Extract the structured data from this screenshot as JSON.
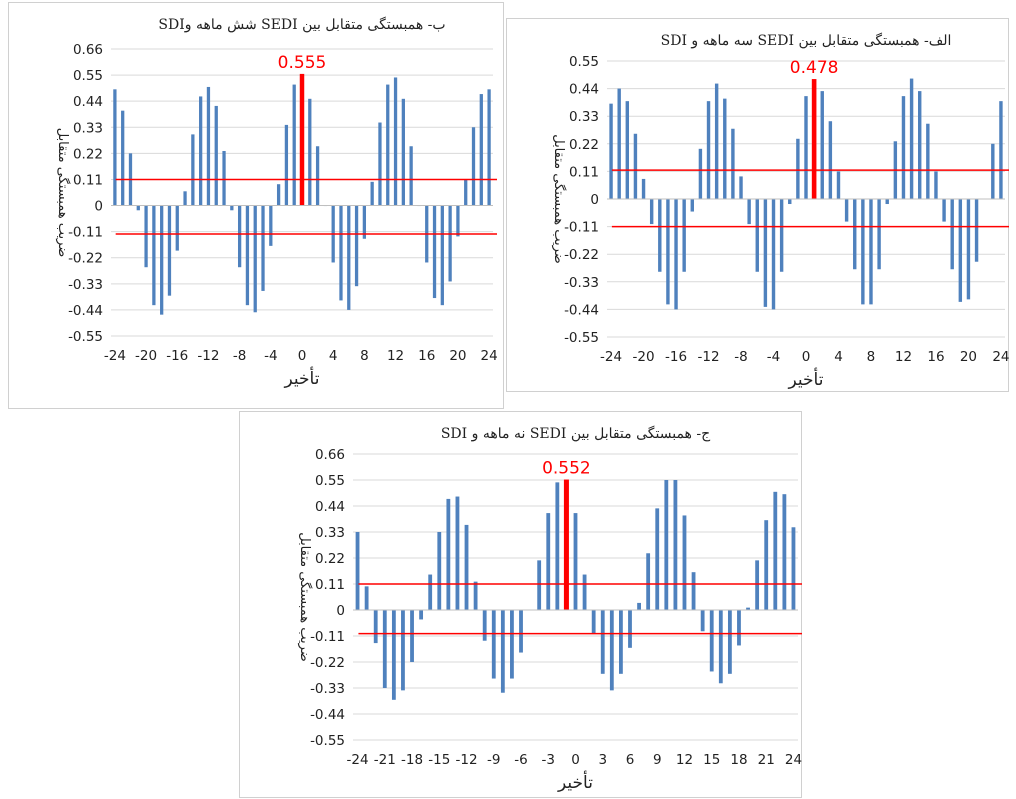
{
  "chart_data": [
    {
      "id": "b",
      "type": "bar",
      "title": "ب- همبستگی متقابل بین SEDI شش ماهه وSDI",
      "xlabel": "تأخیر",
      "ylabel": "ضریب همبستگی متقابل",
      "ylim": [
        -0.55,
        0.66
      ],
      "yticks": [
        "0.66",
        "0.55",
        "0.44",
        "0.33",
        "0.22",
        "0.11",
        "0",
        "-0.11",
        "-0.22",
        "-0.33",
        "-0.44",
        "-0.55"
      ],
      "xlim": [
        -24,
        24
      ],
      "xticks": [
        "-24",
        "-20",
        "-16",
        "-12",
        "-8",
        "-4",
        "0",
        "4",
        "8",
        "12",
        "16",
        "20",
        "24"
      ],
      "grid": true,
      "bar_color": "#4f81bd",
      "threshold_color": "#ff0000",
      "thresholds": [
        0.11,
        -0.12
      ],
      "peak_label": "0.555",
      "peak_lag": 0,
      "peak_value": 0.555,
      "x": [
        -24,
        -23,
        -22,
        -21,
        -20,
        -19,
        -18,
        -17,
        -16,
        -15,
        -14,
        -13,
        -12,
        -11,
        -10,
        -9,
        -8,
        -7,
        -6,
        -5,
        -4,
        -3,
        -2,
        -1,
        0,
        1,
        2,
        3,
        4,
        5,
        6,
        7,
        8,
        9,
        10,
        11,
        12,
        13,
        14,
        15,
        16,
        17,
        18,
        19,
        20,
        21,
        22,
        23,
        24
      ],
      "values": [
        0.49,
        0.4,
        0.22,
        -0.02,
        -0.26,
        -0.42,
        -0.46,
        -0.38,
        -0.19,
        0.06,
        0.3,
        0.46,
        0.5,
        0.42,
        0.23,
        -0.02,
        -0.26,
        -0.42,
        -0.45,
        -0.36,
        -0.17,
        0.09,
        0.34,
        0.51,
        0.555,
        0.45,
        0.25,
        0.0,
        -0.24,
        -0.4,
        -0.44,
        -0.34,
        -0.14,
        0.1,
        0.35,
        0.51,
        0.54,
        0.45,
        0.25,
        0.0,
        -0.24,
        -0.39,
        -0.42,
        -0.32,
        -0.13,
        0.11,
        0.33,
        0.47,
        0.49
      ]
    },
    {
      "id": "a",
      "type": "bar",
      "title": "الف- همبستگی متقابل بین SEDI سه ماهه و SDI",
      "xlabel": "تأخیر",
      "ylabel": "ضریب همبستگی متقابل",
      "ylim": [
        -0.55,
        0.55
      ],
      "yticks": [
        "0.55",
        "0.44",
        "0.33",
        "0.22",
        "0.11",
        "0",
        "-0.11",
        "-0.22",
        "-0.33",
        "-0.44",
        "-0.55"
      ],
      "xlim": [
        -24,
        24
      ],
      "xticks": [
        "-24",
        "-20",
        "-16",
        "-12",
        "-8",
        "-4",
        "0",
        "4",
        "8",
        "12",
        "16",
        "20",
        "24"
      ],
      "grid": true,
      "bar_color": "#4f81bd",
      "threshold_color": "#ff0000",
      "thresholds": [
        0.115,
        -0.11
      ],
      "peak_label": "0.478",
      "peak_lag": 1,
      "peak_value": 0.478,
      "x": [
        -24,
        -23,
        -22,
        -21,
        -20,
        -19,
        -18,
        -17,
        -16,
        -15,
        -14,
        -13,
        -12,
        -11,
        -10,
        -9,
        -8,
        -7,
        -6,
        -5,
        -4,
        -3,
        -2,
        -1,
        0,
        1,
        2,
        3,
        4,
        5,
        6,
        7,
        8,
        9,
        10,
        11,
        12,
        13,
        14,
        15,
        16,
        17,
        18,
        19,
        20,
        21,
        22,
        23,
        24
      ],
      "values": [
        0.38,
        0.44,
        0.39,
        0.26,
        0.08,
        -0.1,
        -0.29,
        -0.42,
        -0.44,
        -0.29,
        -0.05,
        0.2,
        0.39,
        0.46,
        0.4,
        0.28,
        0.09,
        -0.1,
        -0.29,
        -0.43,
        -0.44,
        -0.29,
        -0.02,
        0.24,
        0.41,
        0.478,
        0.43,
        0.31,
        0.11,
        -0.09,
        -0.28,
        -0.42,
        -0.42,
        -0.28,
        -0.02,
        0.23,
        0.41,
        0.48,
        0.43,
        0.3,
        0.11,
        -0.09,
        -0.28,
        -0.41,
        -0.4,
        -0.25,
        0.0,
        0.22,
        0.39
      ]
    },
    {
      "id": "c",
      "type": "bar",
      "title": "ج- همبستگی متقابل بین SEDI نه ماهه و SDI",
      "xlabel": "تأخیر",
      "ylabel": "ضریب همبستگی متقابل",
      "ylim": [
        -0.55,
        0.66
      ],
      "yticks": [
        "0.66",
        "0.55",
        "0.44",
        "0.33",
        "0.22",
        "0.11",
        "0",
        "-0.11",
        "-0.22",
        "-0.33",
        "-0.44",
        "-0.55"
      ],
      "xlim": [
        -24,
        24
      ],
      "xticks": [
        "-24",
        "-21",
        "-18",
        "-15",
        "-12",
        "-9",
        "-6",
        "-3",
        "0",
        "3",
        "6",
        "9",
        "12",
        "15",
        "18",
        "21",
        "24"
      ],
      "grid": true,
      "bar_color": "#4f81bd",
      "threshold_color": "#ff0000",
      "thresholds": [
        0.11,
        -0.1
      ],
      "peak_label": "0.552",
      "peak_lag": -1,
      "peak_value": 0.552,
      "x": [
        -24,
        -23,
        -22,
        -21,
        -20,
        -19,
        -18,
        -17,
        -16,
        -15,
        -14,
        -13,
        -12,
        -11,
        -10,
        -9,
        -8,
        -7,
        -6,
        -5,
        -4,
        -3,
        -2,
        -1,
        0,
        1,
        2,
        3,
        4,
        5,
        6,
        7,
        8,
        9,
        10,
        11,
        12,
        13,
        14,
        15,
        16,
        17,
        18,
        19,
        20,
        21,
        22,
        23,
        24
      ],
      "values": [
        0.33,
        0.1,
        -0.14,
        -0.33,
        -0.38,
        -0.34,
        -0.22,
        -0.04,
        0.15,
        0.33,
        0.47,
        0.48,
        0.36,
        0.12,
        -0.13,
        -0.29,
        -0.35,
        -0.29,
        -0.18,
        0.0,
        0.21,
        0.41,
        0.54,
        0.552,
        0.41,
        0.15,
        -0.1,
        -0.27,
        -0.34,
        -0.27,
        -0.16,
        0.03,
        0.24,
        0.43,
        0.55,
        0.55,
        0.4,
        0.16,
        -0.09,
        -0.26,
        -0.31,
        -0.27,
        -0.15,
        0.01,
        0.21,
        0.38,
        0.5,
        0.49,
        0.35
      ]
    }
  ]
}
